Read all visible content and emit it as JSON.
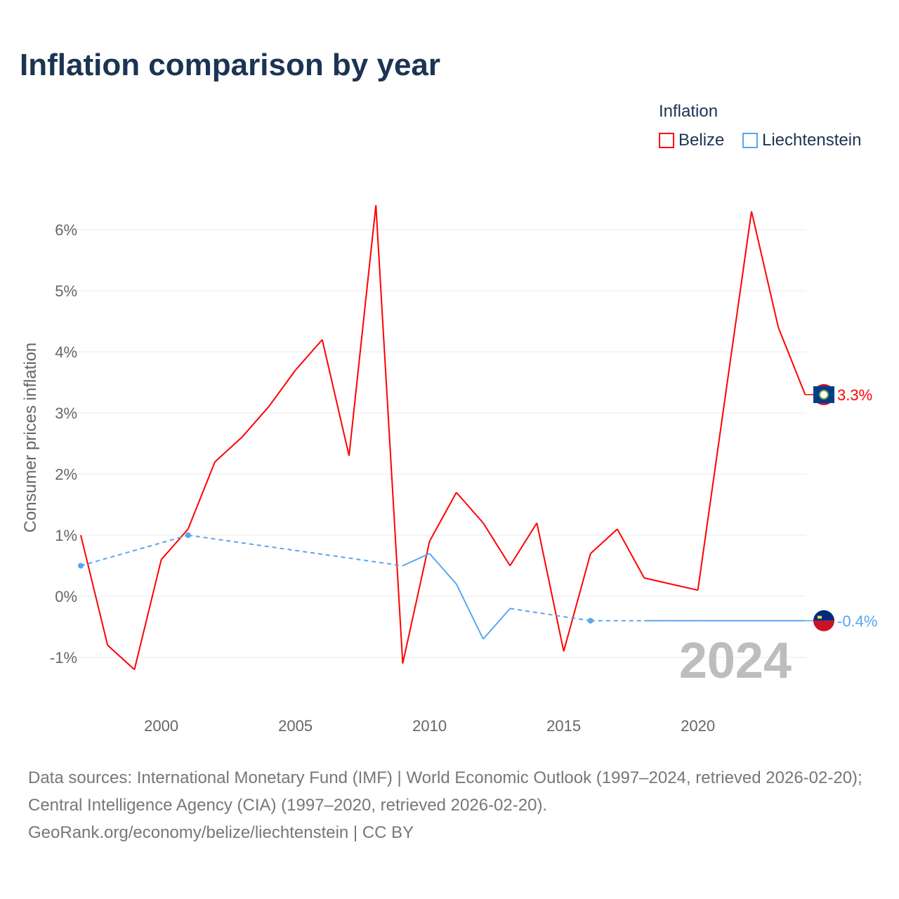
{
  "title": "Inflation comparison by year",
  "legend": {
    "title": "Inflation",
    "items": [
      {
        "label": "Belize",
        "color": "#ff0000"
      },
      {
        "label": "Liechtenstein",
        "color": "#5aa5f0"
      }
    ]
  },
  "source": "Data sources: International Monetary Fund (IMF) | World Economic Outlook (1997–2024, retrieved 2026-02-20); Central Intelligence Agency (CIA) (1997–2020, retrieved 2026-02-20).",
  "footer": "GeoRank.org/economy/belize/liechtenstein | CC BY",
  "chart_data": {
    "type": "line",
    "title": "Inflation comparison by year",
    "ylabel": "Consumer prices inflation",
    "xlabel": "",
    "watermark_year": "2024",
    "xlim": [
      1997,
      2024
    ],
    "ylim": [
      -1.8,
      6.8
    ],
    "x_ticks": [
      2000,
      2005,
      2010,
      2015,
      2020
    ],
    "y_ticks": [
      -1,
      0,
      1,
      2,
      3,
      4,
      5,
      6
    ],
    "y_tick_labels": [
      "-1%",
      "0%",
      "1%",
      "2%",
      "3%",
      "4%",
      "5%",
      "6%"
    ],
    "x": [
      1997,
      1998,
      1999,
      2000,
      2001,
      2002,
      2003,
      2004,
      2005,
      2006,
      2007,
      2008,
      2009,
      2010,
      2011,
      2012,
      2013,
      2014,
      2015,
      2016,
      2017,
      2018,
      2019,
      2020,
      2021,
      2022,
      2023,
      2024
    ],
    "series": [
      {
        "name": "Belize",
        "color": "#ff0000",
        "end_label": "3.3%",
        "values": [
          1.0,
          -0.8,
          -1.2,
          0.6,
          1.1,
          2.2,
          2.6,
          3.1,
          3.7,
          4.2,
          2.3,
          6.4,
          -1.1,
          0.9,
          1.7,
          1.2,
          0.5,
          1.2,
          -0.9,
          0.7,
          1.1,
          0.3,
          0.2,
          0.1,
          3.2,
          6.3,
          4.4,
          3.3
        ]
      },
      {
        "name": "Liechtenstein",
        "color": "#5aa5f0",
        "end_label": "-0.4%",
        "values": [
          0.5,
          null,
          null,
          null,
          1.0,
          null,
          null,
          null,
          null,
          null,
          null,
          null,
          0.5,
          0.7,
          0.2,
          -0.7,
          -0.2,
          null,
          null,
          -0.4,
          null,
          -0.4,
          -0.4,
          -0.4,
          null,
          null,
          null,
          -0.4
        ]
      }
    ]
  }
}
